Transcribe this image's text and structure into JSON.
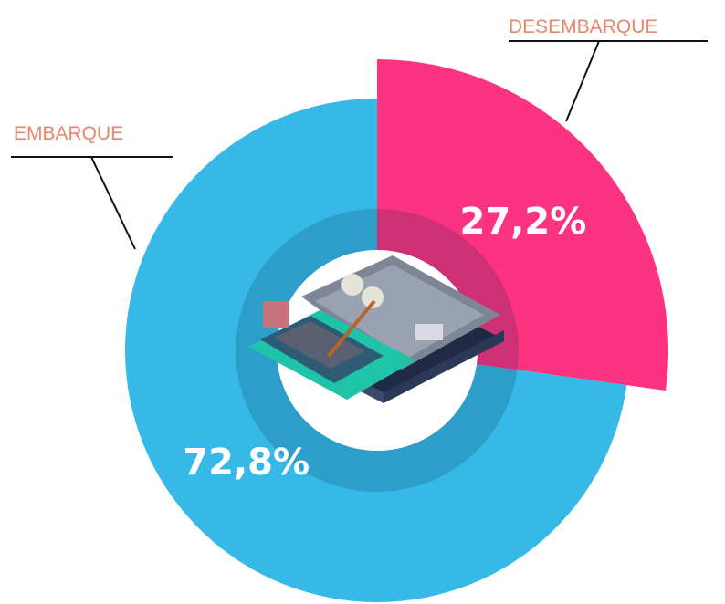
{
  "chart_data": {
    "type": "donut",
    "categories": [
      "EMBARQUE",
      "DESEMBARQUE"
    ],
    "values": [
      72.8,
      27.2
    ],
    "value_labels": [
      "72,8%",
      "27,2%"
    ],
    "colors": [
      "#36b9e6",
      "#fc3380"
    ]
  }
}
